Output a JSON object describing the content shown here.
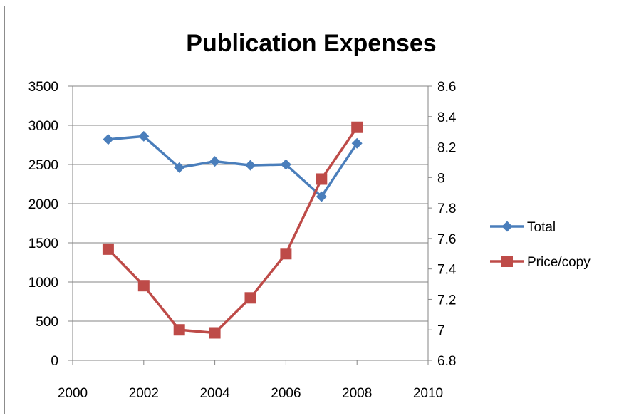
{
  "chart_data": {
    "type": "line",
    "title": "Publication Expenses",
    "xlabel": "",
    "ylabel": "",
    "y2label": "",
    "xlim": [
      2000,
      2010
    ],
    "x_ticks": [
      "2000",
      "2002",
      "2004",
      "2006",
      "2008",
      "2010"
    ],
    "ylim": [
      0,
      3500
    ],
    "y_ticks": [
      "0",
      "500",
      "1000",
      "1500",
      "2000",
      "2500",
      "3000",
      "3500"
    ],
    "y2lim": [
      6.8,
      8.6
    ],
    "y2_ticks": [
      "6.8",
      "7",
      "7.2",
      "7.4",
      "7.6",
      "7.8",
      "8",
      "8.2",
      "8.4",
      "8.6"
    ],
    "grid": true,
    "legend_position": "right",
    "series": [
      {
        "name": "Total",
        "axis": "left",
        "marker": "diamond",
        "color": "#4a7ebb",
        "x": [
          2001,
          2002,
          2003,
          2004,
          2005,
          2006,
          2007,
          2008
        ],
        "values": [
          2820,
          2860,
          2460,
          2540,
          2490,
          2500,
          2090,
          2770
        ]
      },
      {
        "name": "Price/copy",
        "axis": "right",
        "marker": "square",
        "color": "#be4b48",
        "x": [
          2001,
          2002,
          2003,
          2004,
          2005,
          2006,
          2007,
          2008
        ],
        "values": [
          7.53,
          7.29,
          7.0,
          6.98,
          7.21,
          7.5,
          7.99,
          8.33
        ]
      }
    ]
  }
}
